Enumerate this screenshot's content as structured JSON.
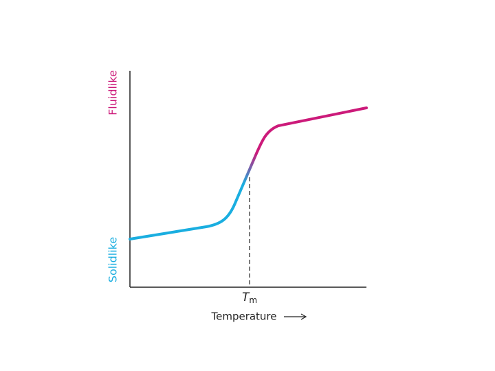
{
  "y_axis": {
    "top_label": "Fluidlike",
    "bottom_label": "Solidlike"
  },
  "marker": {
    "symbol": "T",
    "subscript": "m"
  },
  "x_axis": {
    "label": "Temperature"
  }
}
